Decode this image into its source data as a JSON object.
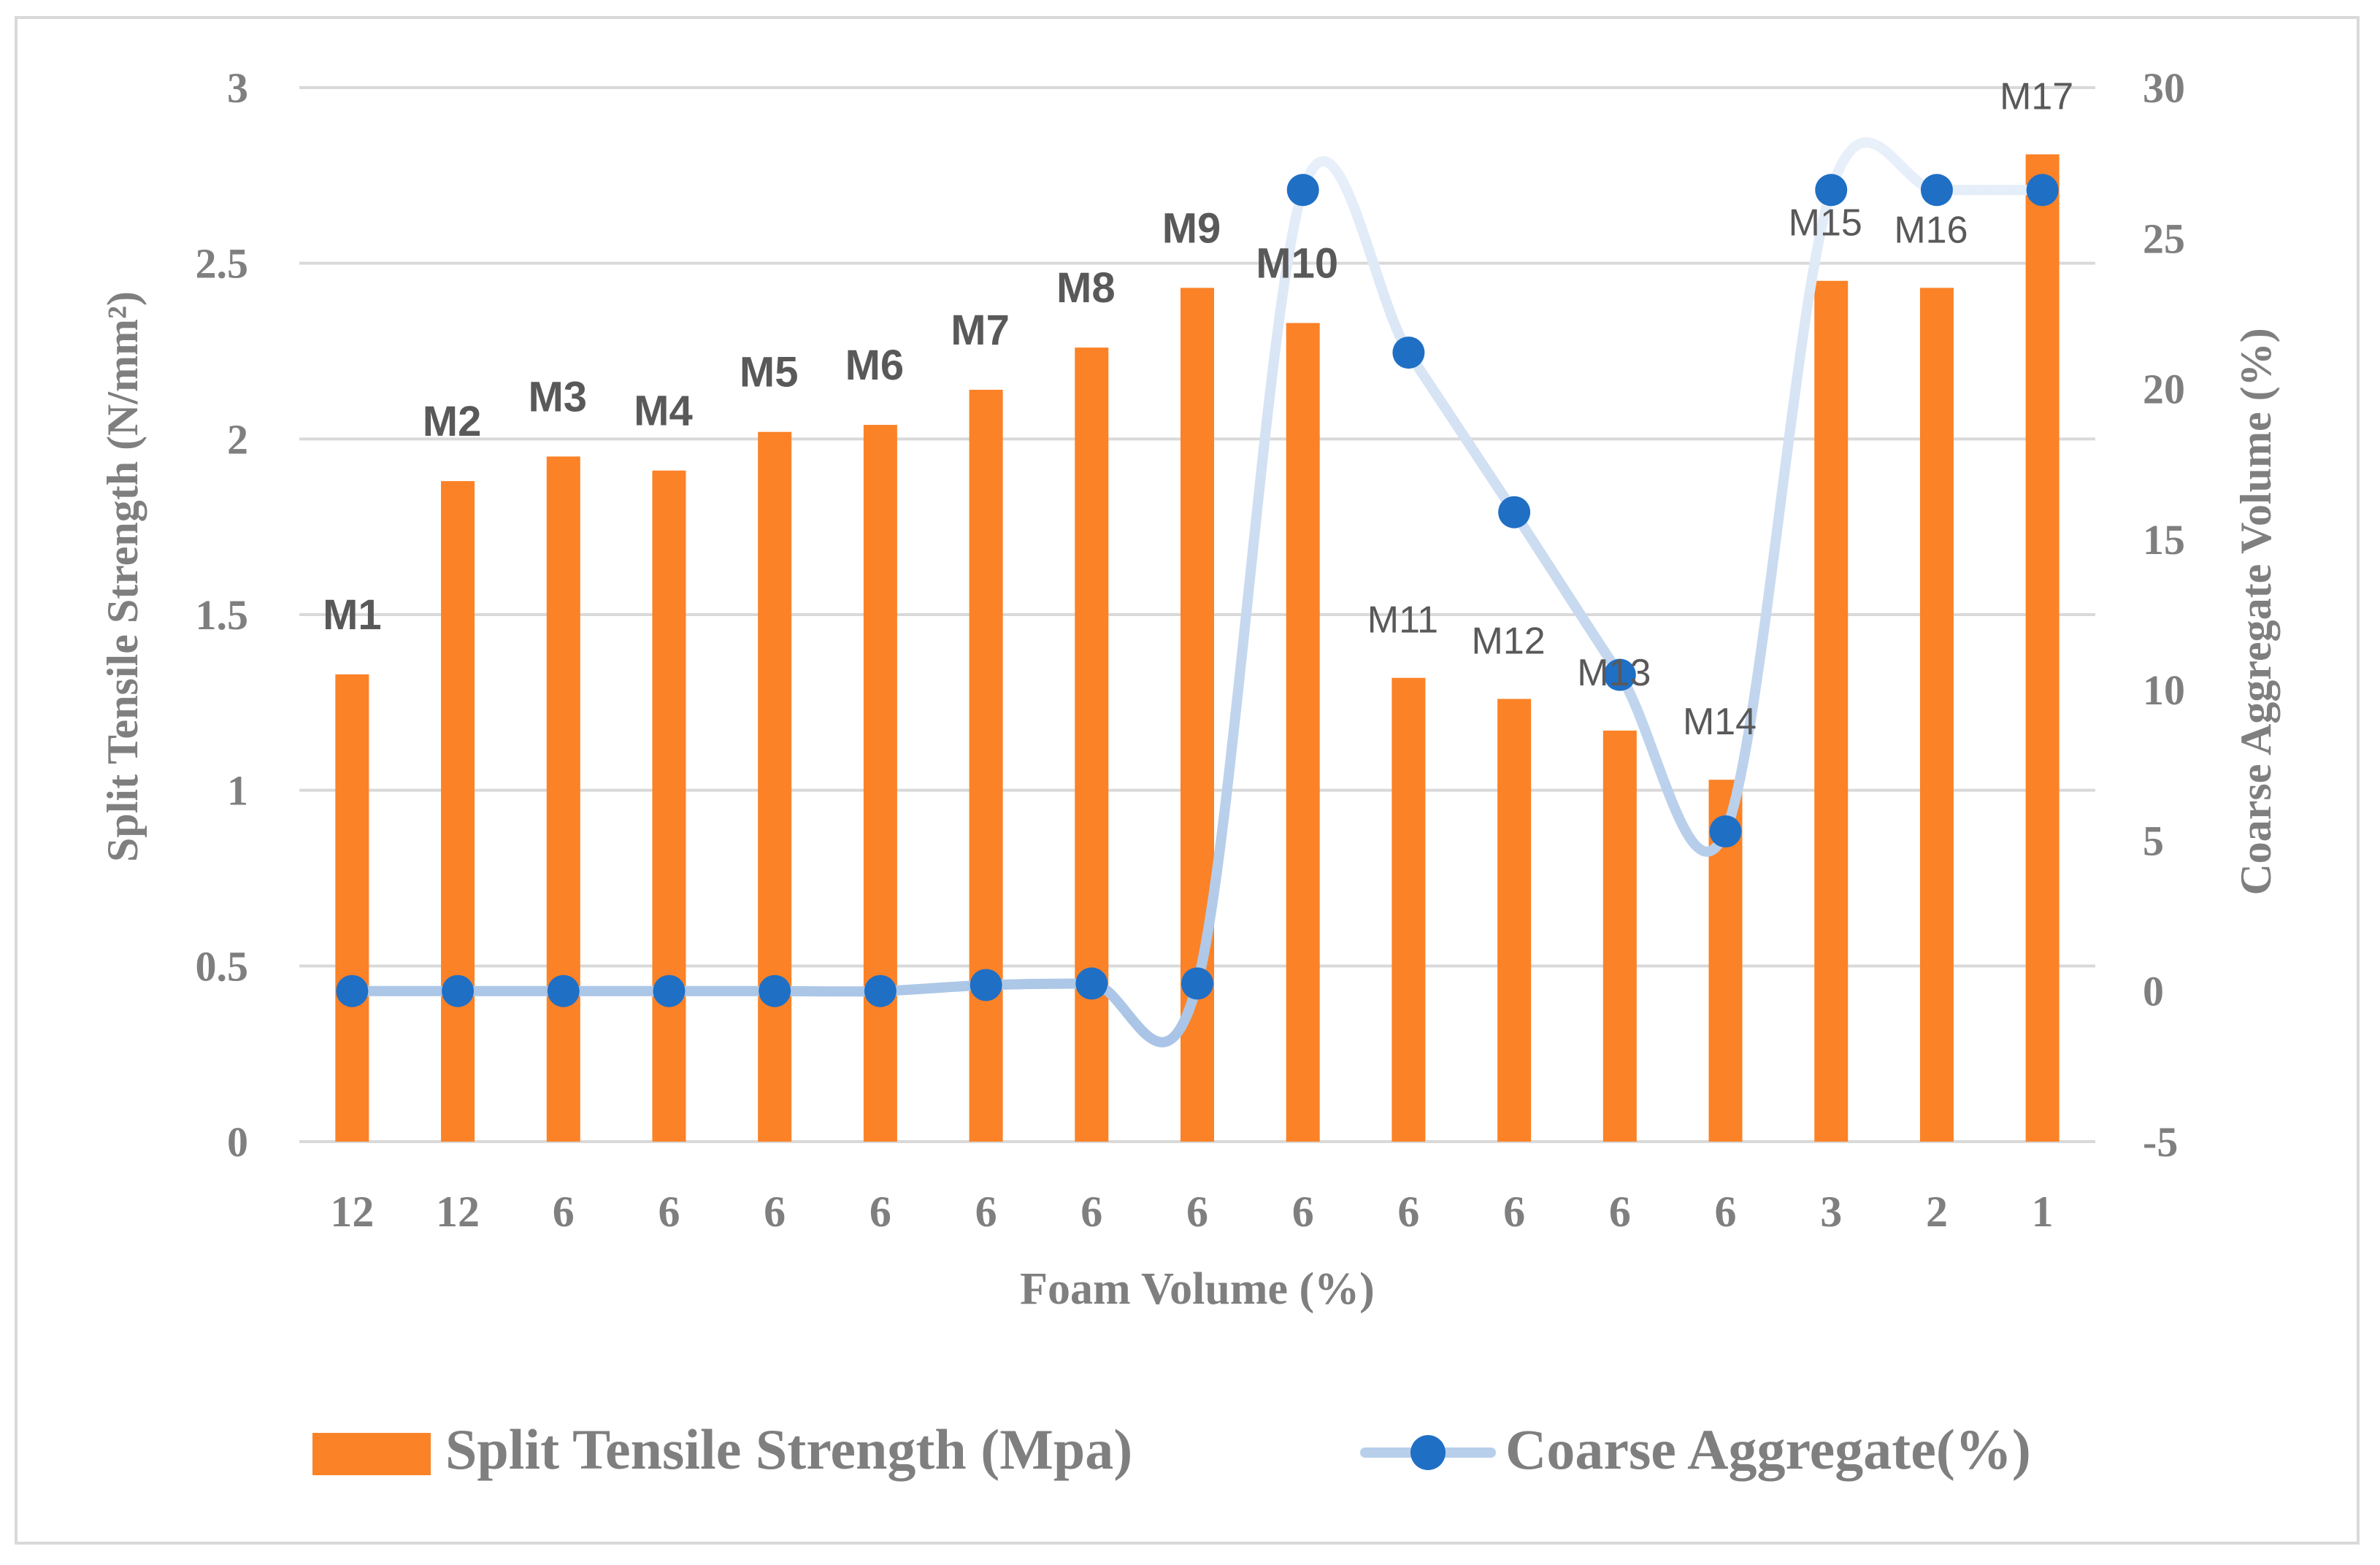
{
  "chart_data": {
    "type": "bar",
    "xlabel": "Foam Volume (%)",
    "ylabel_left": "Split Tensile Strength (N/mm²)",
    "ylabel_right": "Coarse Aggregate Volume (%)",
    "categories": [
      "12",
      "12",
      "6",
      "6",
      "6",
      "6",
      "6",
      "6",
      "6",
      "6",
      "6",
      "6",
      "6",
      "6",
      "3",
      "2",
      "1"
    ],
    "mix_labels": [
      "M1",
      "M2",
      "M3",
      "M4",
      "M5",
      "M6",
      "M7",
      "M8",
      "M9",
      "M10",
      "M11",
      "M12",
      "M13",
      "M14",
      "M15",
      "M16",
      "M17"
    ],
    "bold_label_count": 10,
    "ylim_left": [
      0,
      3
    ],
    "yticks_left": [
      "0",
      "0.5",
      "1",
      "1.5",
      "2",
      "2.5",
      "3"
    ],
    "ylim_right": [
      -5,
      30
    ],
    "yticks_right": [
      "-5",
      "0",
      "5",
      "10",
      "15",
      "20",
      "25",
      "30"
    ],
    "grid": true,
    "legend_position": "bottom",
    "series": [
      {
        "name": "Split Tensile Strength (Mpa)",
        "type": "bar",
        "axis": "left",
        "color": "#fb8227",
        "values": [
          1.33,
          1.88,
          1.95,
          1.91,
          2.02,
          2.04,
          2.14,
          2.26,
          2.43,
          2.33,
          1.32,
          1.26,
          1.17,
          1.03,
          2.45,
          2.43,
          2.81
        ]
      },
      {
        "name": "Coarse Aggregate(%)",
        "type": "line",
        "axis": "right",
        "color": "#1f6fc5",
        "line_color": "#b7cfea",
        "values": [
          0,
          0,
          0,
          0,
          0,
          0,
          0.2,
          0.25,
          0.25,
          26.6,
          21.2,
          15.9,
          10.5,
          5.3,
          26.6,
          26.6,
          26.6
        ]
      }
    ]
  }
}
